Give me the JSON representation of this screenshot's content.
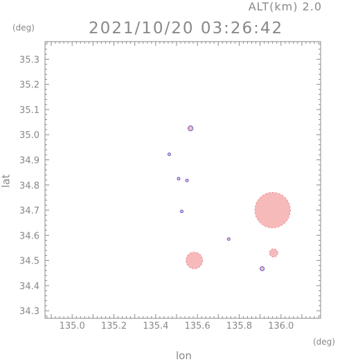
{
  "header": {
    "altitude_label": "ALT(km)  2.0",
    "timestamp": "2021/10/20 03:26:42"
  },
  "axes": {
    "x_unit": "(deg)",
    "y_unit": "(deg)",
    "x_label": "lon",
    "y_label": "lat",
    "x_ticks": [
      "135.0",
      "135.2",
      "135.4",
      "135.6",
      "135.8",
      "136.0"
    ],
    "y_ticks": [
      "35.3",
      "35.2",
      "35.1",
      "35.0",
      "34.9",
      "34.8",
      "34.7",
      "34.6",
      "34.5",
      "34.4",
      "34.3"
    ]
  },
  "colors": {
    "frame": "#888888",
    "echo_fill": "#f6baba",
    "echo_edge_red": "#e05060",
    "echo_edge_blue": "#5a5ad8"
  },
  "chart_data": {
    "type": "scatter",
    "title": "",
    "xlabel": "lon",
    "ylabel": "lat",
    "xlim": [
      134.87,
      136.19
    ],
    "ylim": [
      34.27,
      35.37
    ],
    "grid": false,
    "echo_regions": [
      {
        "name": "",
        "lon": 135.567,
        "lat": 35.025,
        "radius_deg": 0.012
      },
      {
        "name": "",
        "lon": 135.465,
        "lat": 34.922,
        "radius_deg": 0.004
      },
      {
        "name": "",
        "lon": 135.51,
        "lat": 34.825,
        "radius_deg": 0.006
      },
      {
        "name": "",
        "lon": 135.55,
        "lat": 34.818,
        "radius_deg": 0.004
      },
      {
        "name": "",
        "lon": 135.525,
        "lat": 34.695,
        "radius_deg": 0.004
      },
      {
        "name": "",
        "lon": 135.585,
        "lat": 34.5,
        "radius_deg": 0.04
      },
      {
        "name": "",
        "lon": 135.75,
        "lat": 34.585,
        "radius_deg": 0.006
      },
      {
        "name": "",
        "lon": 135.96,
        "lat": 34.7,
        "radius_deg": 0.085
      },
      {
        "name": "",
        "lon": 135.965,
        "lat": 34.53,
        "radius_deg": 0.02
      },
      {
        "name": "",
        "lon": 135.91,
        "lat": 34.467,
        "radius_deg": 0.01
      }
    ]
  }
}
